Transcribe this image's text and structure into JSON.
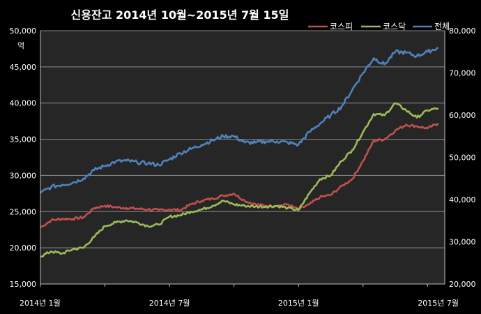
{
  "chart_data": {
    "type": "line",
    "title": "신용잔고 2014년 10월~2015년 7월 15일",
    "y_unit": "억",
    "ylim_left": [
      15000,
      50000
    ],
    "ylim_right": [
      20000,
      80000
    ],
    "yticks_left": [
      "15,000",
      "20,000",
      "25,000",
      "30,000",
      "35,000",
      "40,000",
      "45,000",
      "50,000"
    ],
    "yticks_right": [
      "20,000",
      "30,000",
      "40,000",
      "50,000",
      "60,000",
      "70,000",
      "80,000"
    ],
    "xticks": [
      "2014년 1월",
      "2014년 7월",
      "2015년 1월",
      "2015년 7월"
    ],
    "legend_position": "top-right",
    "grid": "horizontal",
    "x": [
      0,
      0.5,
      1,
      1.5,
      2,
      2.5,
      3,
      3.5,
      4,
      4.5,
      5,
      5.5,
      6,
      6.5,
      7,
      7.5,
      8,
      8.5,
      9,
      9.5,
      10,
      10.5,
      11,
      11.5,
      12,
      12.5,
      13,
      13.5,
      14,
      14.5,
      15,
      15.5,
      16,
      16.5,
      17,
      17.5,
      18,
      18.5
    ],
    "series": [
      {
        "name": "코스피",
        "axis": "left",
        "color": "#c0504d",
        "values": [
          22800,
          23800,
          24000,
          24000,
          24200,
          25500,
          25800,
          25600,
          25500,
          25400,
          25300,
          25200,
          25300,
          25200,
          26000,
          26500,
          26800,
          27200,
          27500,
          26500,
          26000,
          25800,
          25800,
          26000,
          25300,
          26000,
          27000,
          27300,
          28500,
          29500,
          32000,
          34800,
          35000,
          36200,
          37000,
          36800,
          36500,
          37200
        ]
      },
      {
        "name": "코스닥",
        "axis": "left",
        "color": "#9bbb59",
        "values": [
          18800,
          19500,
          19200,
          19800,
          20000,
          21500,
          23000,
          23500,
          23800,
          23500,
          23000,
          23200,
          24300,
          24500,
          25000,
          25300,
          25800,
          26500,
          26000,
          25800,
          25700,
          25700,
          25800,
          25500,
          25200,
          27500,
          29500,
          30000,
          32000,
          33500,
          36000,
          38500,
          38300,
          40000,
          39000,
          38000,
          39000,
          39300
        ]
      },
      {
        "name": "전체",
        "axis": "right",
        "color": "#4f81bd",
        "values": [
          41500,
          43000,
          43500,
          44000,
          45000,
          47000,
          48000,
          49000,
          49200,
          48800,
          48600,
          48200,
          49500,
          51000,
          52000,
          53000,
          54000,
          55000,
          55000,
          53500,
          53500,
          53800,
          53800,
          53500,
          53000,
          56000,
          58000,
          60000,
          62000,
          66000,
          70000,
          73500,
          72000,
          75000,
          74800,
          74000,
          75000,
          76000
        ]
      }
    ]
  }
}
